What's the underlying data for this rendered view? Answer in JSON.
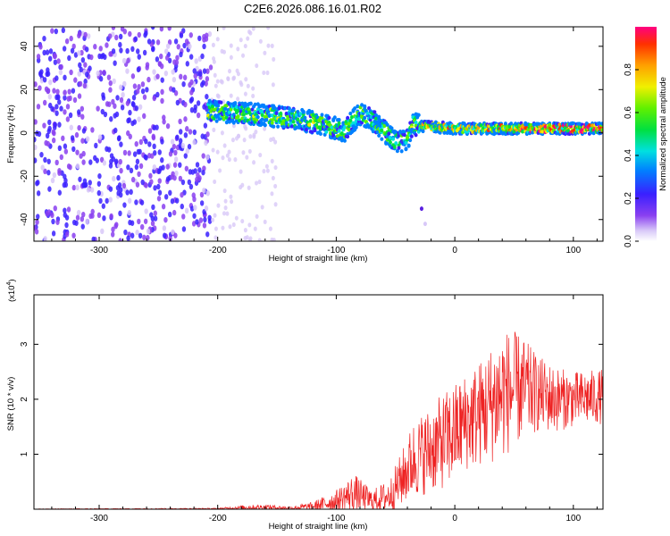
{
  "title": "C2E6.2026.086.16.01.R02",
  "chart_data": [
    {
      "type": "heatmap",
      "name": "spectrogram",
      "xlabel": "Height of straight line (km)",
      "ylabel": "Frequency (Hz)",
      "xlim": [
        -355,
        125
      ],
      "ylim": [
        -50,
        49
      ],
      "xticks": [
        -300,
        -200,
        -100,
        0,
        100
      ],
      "yticks": [
        -40,
        -20,
        0,
        20,
        40
      ],
      "colorbar": {
        "label": "Normalized spectral amplitude",
        "range": [
          0,
          1
        ],
        "ticks": [
          0.0,
          0.2,
          0.4,
          0.6,
          0.8
        ],
        "tick_labels": [
          "0.0",
          "0.2",
          "0.4",
          "0.6",
          "0.8"
        ]
      },
      "features": [
        {
          "name": "broadband noise",
          "x_range": [
            -355,
            -205
          ],
          "freq_range": [
            -50,
            49
          ],
          "amplitude": 0.15
        },
        {
          "name": "faint noise",
          "x_range": [
            -205,
            -150
          ],
          "freq_range": [
            -50,
            49
          ],
          "amplitude": 0.05
        },
        {
          "name": "signal trace",
          "points": [
            [
              -205,
              10
            ],
            [
              -180,
              9
            ],
            [
              -160,
              8
            ],
            [
              -140,
              7
            ],
            [
              -120,
              5
            ],
            [
              -100,
              2
            ],
            [
              -95,
              0
            ],
            [
              -80,
              9
            ],
            [
              -70,
              6
            ],
            [
              -60,
              1
            ],
            [
              -50,
              -4
            ],
            [
              -40,
              -3
            ],
            [
              -35,
              4
            ],
            [
              -25,
              3
            ],
            [
              0,
              2
            ],
            [
              25,
              2
            ],
            [
              50,
              2
            ],
            [
              75,
              2
            ],
            [
              100,
              2
            ],
            [
              125,
              2
            ]
          ]
        }
      ]
    },
    {
      "type": "line",
      "name": "snr",
      "xlabel": "Height of straight line (km)",
      "ylabel": "SNR (10 * v/v)",
      "multiplier_label": "(x10",
      "multiplier_exp": "4",
      "xlim": [
        -355,
        125
      ],
      "ylim": [
        0,
        3.9
      ],
      "xticks": [
        -300,
        -200,
        -100,
        0,
        100
      ],
      "yticks": [
        1,
        2,
        3
      ],
      "color": "#ee2222",
      "envelope": [
        {
          "x": -355,
          "mean": 0.003,
          "amp": 0.005
        },
        {
          "x": -200,
          "mean": 0.01,
          "amp": 0.01
        },
        {
          "x": -180,
          "mean": 0.03,
          "amp": 0.04
        },
        {
          "x": -160,
          "mean": 0.04,
          "amp": 0.05
        },
        {
          "x": -140,
          "mean": 0.02,
          "amp": 0.03
        },
        {
          "x": -120,
          "mean": 0.05,
          "amp": 0.08
        },
        {
          "x": -100,
          "mean": 0.15,
          "amp": 0.2
        },
        {
          "x": -85,
          "mean": 0.3,
          "amp": 0.35
        },
        {
          "x": -70,
          "mean": 0.15,
          "amp": 0.2
        },
        {
          "x": -55,
          "mean": 0.25,
          "amp": 0.3
        },
        {
          "x": -45,
          "mean": 0.55,
          "amp": 0.5
        },
        {
          "x": -35,
          "mean": 0.9,
          "amp": 0.7
        },
        {
          "x": -20,
          "mean": 1.1,
          "amp": 0.8
        },
        {
          "x": -5,
          "mean": 1.3,
          "amp": 0.9
        },
        {
          "x": 10,
          "mean": 1.6,
          "amp": 0.9
        },
        {
          "x": 25,
          "mean": 1.8,
          "amp": 1.0
        },
        {
          "x": 40,
          "mean": 2.1,
          "amp": 1.2
        },
        {
          "x": 55,
          "mean": 2.2,
          "amp": 1.0
        },
        {
          "x": 70,
          "mean": 2.1,
          "amp": 0.7
        },
        {
          "x": 85,
          "mean": 2.0,
          "amp": 0.6
        },
        {
          "x": 100,
          "mean": 2.0,
          "amp": 0.5
        },
        {
          "x": 125,
          "mean": 2.05,
          "amp": 0.5
        }
      ]
    }
  ]
}
